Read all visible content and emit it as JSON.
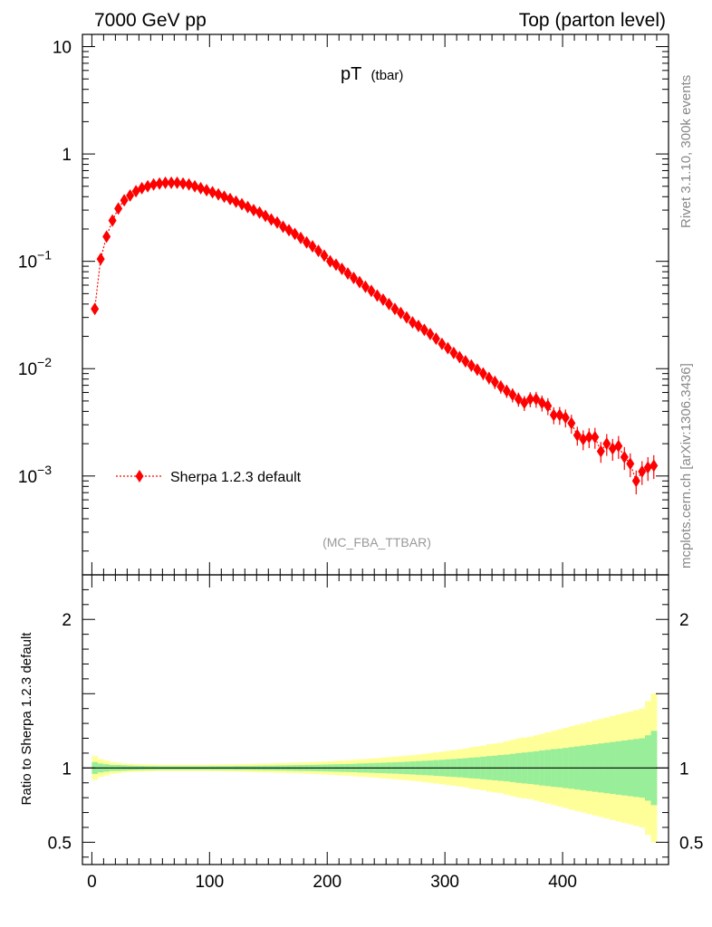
{
  "header": {
    "left": "7000 GeV pp",
    "right": "Top (parton level)"
  },
  "side_labels": {
    "rivet": "Rivet 3.1.10,  300k events",
    "mcplots": "mcplots.cern.ch [arXiv:1306.3436]"
  },
  "chart_data": [
    {
      "type": "scatter",
      "title_main": "pT",
      "title_sub": "(tbar)",
      "watermark": "(MC_FBA_TTBAR)",
      "yscale": "log",
      "ylim": [
        0.00012,
        13
      ],
      "xlim": [
        -8,
        490
      ],
      "ytick_labels": [
        {
          "value": 10,
          "base": "10",
          "exp": ""
        },
        {
          "value": 1,
          "base": "1",
          "exp": ""
        },
        {
          "value": 0.1,
          "base": "10",
          "exp": "−1"
        },
        {
          "value": 0.01,
          "base": "10",
          "exp": "−2"
        },
        {
          "value": 0.001,
          "base": "10",
          "exp": "−3"
        }
      ],
      "legend": "Sherpa 1.2.3 default",
      "marker_color": "#ff0000",
      "series": [
        {
          "name": "Sherpa 1.2.3 default",
          "x": [
            2.5,
            7.5,
            12.5,
            17.5,
            22.5,
            27.5,
            32.5,
            37.5,
            42.5,
            47.5,
            52.5,
            57.5,
            62.5,
            67.5,
            72.5,
            77.5,
            82.5,
            87.5,
            92.5,
            97.5,
            102.5,
            107.5,
            112.5,
            117.5,
            122.5,
            127.5,
            132.5,
            137.5,
            142.5,
            147.5,
            152.5,
            157.5,
            162.5,
            167.5,
            172.5,
            177.5,
            182.5,
            187.5,
            192.5,
            197.5,
            202.5,
            207.5,
            212.5,
            217.5,
            222.5,
            227.5,
            232.5,
            237.5,
            242.5,
            247.5,
            252.5,
            257.5,
            262.5,
            267.5,
            272.5,
            277.5,
            282.5,
            287.5,
            292.5,
            297.5,
            302.5,
            307.5,
            312.5,
            317.5,
            322.5,
            327.5,
            332.5,
            337.5,
            342.5,
            347.5,
            352.5,
            357.5,
            362.5,
            367.5,
            372.5,
            377.5,
            382.5,
            387.5,
            392.5,
            397.5,
            402.5,
            407.5,
            412.5,
            417.5,
            422.5,
            427.5,
            432.5,
            437.5,
            442.5,
            447.5,
            452.5,
            457.5,
            462.5,
            467.5,
            472.5,
            477.5
          ],
          "y": [
            0.036,
            0.105,
            0.17,
            0.24,
            0.31,
            0.37,
            0.41,
            0.45,
            0.48,
            0.5,
            0.52,
            0.53,
            0.54,
            0.54,
            0.54,
            0.53,
            0.52,
            0.5,
            0.48,
            0.46,
            0.44,
            0.42,
            0.4,
            0.38,
            0.36,
            0.34,
            0.32,
            0.3,
            0.285,
            0.265,
            0.245,
            0.23,
            0.21,
            0.195,
            0.18,
            0.165,
            0.15,
            0.138,
            0.125,
            0.113,
            0.1,
            0.093,
            0.085,
            0.077,
            0.07,
            0.064,
            0.058,
            0.053,
            0.048,
            0.044,
            0.04,
            0.036,
            0.033,
            0.03,
            0.027,
            0.025,
            0.023,
            0.021,
            0.019,
            0.017,
            0.0155,
            0.014,
            0.0128,
            0.0117,
            0.0107,
            0.0098,
            0.009,
            0.0082,
            0.0075,
            0.0068,
            0.0062,
            0.0057,
            0.0052,
            0.0048,
            0.0052,
            0.0052,
            0.0048,
            0.0045,
            0.0037,
            0.0037,
            0.0035,
            0.0031,
            0.0024,
            0.0022,
            0.0023,
            0.0023,
            0.0017,
            0.002,
            0.0018,
            0.0019,
            0.0015,
            0.0013,
            0.0009,
            0.0011,
            0.0012,
            0.00125
          ],
          "yerr_rel": [
            0.03,
            0.03,
            0.03,
            0.02,
            0.02,
            0.02,
            0.02,
            0.02,
            0.02,
            0.02,
            0.02,
            0.02,
            0.02,
            0.02,
            0.02,
            0.02,
            0.02,
            0.02,
            0.02,
            0.02,
            0.02,
            0.02,
            0.02,
            0.02,
            0.02,
            0.02,
            0.02,
            0.02,
            0.02,
            0.02,
            0.03,
            0.03,
            0.03,
            0.03,
            0.03,
            0.03,
            0.03,
            0.04,
            0.04,
            0.04,
            0.04,
            0.05,
            0.05,
            0.05,
            0.05,
            0.05,
            0.06,
            0.06,
            0.06,
            0.06,
            0.07,
            0.07,
            0.07,
            0.08,
            0.08,
            0.08,
            0.09,
            0.09,
            0.1,
            0.1,
            0.1,
            0.1,
            0.11,
            0.11,
            0.12,
            0.12,
            0.13,
            0.13,
            0.14,
            0.14,
            0.14,
            0.15,
            0.15,
            0.16,
            0.16,
            0.17,
            0.17,
            0.18,
            0.18,
            0.19,
            0.19,
            0.2,
            0.2,
            0.21,
            0.21,
            0.22,
            0.22,
            0.23,
            0.23,
            0.24,
            0.24,
            0.25,
            0.25,
            0.25,
            0.25,
            0.25
          ]
        }
      ]
    },
    {
      "type": "area",
      "ylabel": "Ratio to Sherpa 1.2.3 default",
      "ylim": [
        0.35,
        2.3
      ],
      "xlim": [
        -8,
        490
      ],
      "yticks_labeled": [
        0.5,
        1,
        2
      ],
      "ytick_labels": [
        "0.5",
        "1",
        "2"
      ],
      "xticks_labeled": [
        0,
        100,
        200,
        300,
        400
      ],
      "xtick_labels": [
        "0",
        "100",
        "200",
        "300",
        "400"
      ],
      "reference_line": 1,
      "band_colors": {
        "stat": "#99ee99",
        "total": "#ffff99"
      },
      "bins": [
        0,
        5,
        10,
        15,
        20,
        25,
        30,
        35,
        40,
        45,
        50,
        55,
        60,
        65,
        70,
        75,
        80,
        85,
        90,
        95,
        100,
        105,
        110,
        115,
        120,
        125,
        130,
        135,
        140,
        145,
        150,
        155,
        160,
        165,
        170,
        175,
        180,
        185,
        190,
        195,
        200,
        205,
        210,
        215,
        220,
        225,
        230,
        235,
        240,
        245,
        250,
        255,
        260,
        265,
        270,
        275,
        280,
        285,
        290,
        295,
        300,
        305,
        310,
        315,
        320,
        325,
        330,
        335,
        340,
        345,
        350,
        355,
        360,
        365,
        370,
        375,
        380,
        385,
        390,
        395,
        400,
        405,
        410,
        415,
        420,
        425,
        430,
        435,
        440,
        445,
        450,
        455,
        460,
        465,
        470,
        475,
        480
      ],
      "inner_band": [
        0.04,
        0.03,
        0.025,
        0.02,
        0.02,
        0.018,
        0.016,
        0.015,
        0.014,
        0.013,
        0.013,
        0.012,
        0.012,
        0.012,
        0.012,
        0.012,
        0.012,
        0.012,
        0.012,
        0.012,
        0.013,
        0.013,
        0.013,
        0.013,
        0.014,
        0.014,
        0.014,
        0.015,
        0.015,
        0.016,
        0.016,
        0.017,
        0.017,
        0.018,
        0.019,
        0.02,
        0.02,
        0.021,
        0.022,
        0.023,
        0.024,
        0.025,
        0.026,
        0.027,
        0.028,
        0.03,
        0.031,
        0.032,
        0.034,
        0.035,
        0.037,
        0.038,
        0.04,
        0.042,
        0.044,
        0.046,
        0.048,
        0.05,
        0.053,
        0.055,
        0.058,
        0.06,
        0.063,
        0.066,
        0.07,
        0.072,
        0.076,
        0.08,
        0.083,
        0.087,
        0.09,
        0.095,
        0.1,
        0.104,
        0.108,
        0.112,
        0.118,
        0.122,
        0.127,
        0.13,
        0.135,
        0.14,
        0.145,
        0.15,
        0.155,
        0.16,
        0.165,
        0.17,
        0.175,
        0.18,
        0.185,
        0.19,
        0.195,
        0.2,
        0.22,
        0.25
      ],
      "outer_band": [
        0.08,
        0.06,
        0.05,
        0.04,
        0.035,
        0.03,
        0.028,
        0.026,
        0.025,
        0.024,
        0.023,
        0.022,
        0.022,
        0.022,
        0.022,
        0.022,
        0.022,
        0.022,
        0.022,
        0.022,
        0.023,
        0.023,
        0.024,
        0.024,
        0.025,
        0.026,
        0.027,
        0.028,
        0.029,
        0.03,
        0.031,
        0.032,
        0.033,
        0.034,
        0.035,
        0.037,
        0.038,
        0.04,
        0.042,
        0.044,
        0.046,
        0.048,
        0.05,
        0.052,
        0.055,
        0.058,
        0.06,
        0.063,
        0.066,
        0.07,
        0.073,
        0.076,
        0.08,
        0.083,
        0.087,
        0.09,
        0.095,
        0.1,
        0.105,
        0.11,
        0.115,
        0.12,
        0.125,
        0.13,
        0.14,
        0.145,
        0.15,
        0.16,
        0.165,
        0.17,
        0.18,
        0.19,
        0.2,
        0.205,
        0.21,
        0.22,
        0.23,
        0.24,
        0.25,
        0.26,
        0.27,
        0.28,
        0.29,
        0.3,
        0.31,
        0.32,
        0.33,
        0.34,
        0.35,
        0.36,
        0.37,
        0.38,
        0.39,
        0.4,
        0.45,
        0.5
      ]
    }
  ]
}
